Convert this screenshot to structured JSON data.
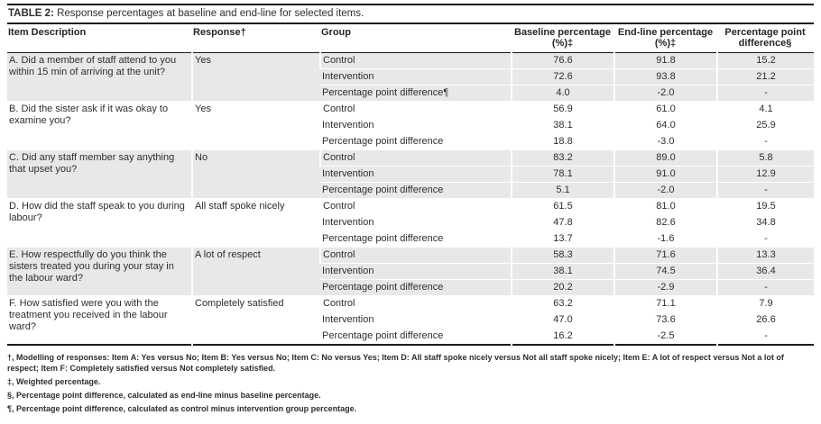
{
  "title": {
    "label": "TABLE 2:",
    "text": " Response percentages at baseline and end-line for selected items."
  },
  "colors": {
    "row_shade": "#e8e8e8",
    "rule": "#1a1a1a"
  },
  "columns": [
    "Item Description",
    "Response†",
    "Group",
    "Baseline percentage\n(%)‡",
    "End-line percentage\n(%)‡",
    "Percentage point\ndifference§"
  ],
  "items": [
    {
      "description": "A. Did a member of staff attend to you within 15 min of arriving at the unit?",
      "response": "Yes",
      "rows": [
        {
          "group": "Control",
          "baseline": "76.6",
          "endline": "91.8",
          "diff": "15.2"
        },
        {
          "group": "Intervention",
          "baseline": "72.6",
          "endline": "93.8",
          "diff": "21.2"
        },
        {
          "group": "Percentage point difference¶",
          "baseline": "4.0",
          "endline": "-2.0",
          "diff": "-"
        }
      ]
    },
    {
      "description": "B. Did the sister ask if it was okay to examine you?",
      "response": "Yes",
      "rows": [
        {
          "group": "Control",
          "baseline": "56.9",
          "endline": "61.0",
          "diff": "4.1"
        },
        {
          "group": "Intervention",
          "baseline": "38.1",
          "endline": "64.0",
          "diff": "25.9"
        },
        {
          "group": "Percentage point difference",
          "baseline": "18.8",
          "endline": "-3.0",
          "diff": "-"
        }
      ]
    },
    {
      "description": "C. Did any staff member say anything that upset you?",
      "response": "No",
      "rows": [
        {
          "group": "Control",
          "baseline": "83.2",
          "endline": "89.0",
          "diff": "5.8"
        },
        {
          "group": "Intervention",
          "baseline": "78.1",
          "endline": "91.0",
          "diff": "12.9"
        },
        {
          "group": "Percentage point difference",
          "baseline": "5.1",
          "endline": "-2.0",
          "diff": "-"
        }
      ]
    },
    {
      "description": "D. How did the staff speak to you during labour?",
      "response": "All staff spoke nicely",
      "rows": [
        {
          "group": "Control",
          "baseline": "61.5",
          "endline": "81.0",
          "diff": "19.5"
        },
        {
          "group": "Intervention",
          "baseline": "47.8",
          "endline": "82.6",
          "diff": "34.8"
        },
        {
          "group": "Percentage point difference",
          "baseline": "13.7",
          "endline": "-1.6",
          "diff": "-"
        }
      ]
    },
    {
      "description": "E. How respectfully do you think the sisters treated you during your stay in the labour ward?",
      "response": "A lot of respect",
      "rows": [
        {
          "group": "Control",
          "baseline": "58.3",
          "endline": "71.6",
          "diff": "13.3"
        },
        {
          "group": "Intervention",
          "baseline": "38.1",
          "endline": "74.5",
          "diff": "36.4"
        },
        {
          "group": "Percentage point difference",
          "baseline": "20.2",
          "endline": "-2.9",
          "diff": "-"
        }
      ]
    },
    {
      "description": "F. How satisfied were you with the treatment you received in the labour ward?",
      "response": "Completely satisfied",
      "rows": [
        {
          "group": "Control",
          "baseline": "63.2",
          "endline": "71.1",
          "diff": "7.9"
        },
        {
          "group": "Intervention",
          "baseline": "47.0",
          "endline": "73.6",
          "diff": "26.6"
        },
        {
          "group": "Percentage point difference",
          "baseline": "16.2",
          "endline": "-2.5",
          "diff": "-"
        }
      ]
    }
  ],
  "footnotes": [
    "†, Modelling of responses: Item A: Yes versus No; Item B: Yes versus No; Item C: No versus Yes; Item D: All staff spoke nicely versus Not all staff spoke nicely; Item E: A lot of respect versus Not a lot of respect; Item F: Completely satisfied versus Not completely satisfied.",
    "‡, Weighted percentage.",
    "§, Percentage point difference, calculated as end-line minus baseline percentage.",
    "¶, Percentage point difference, calculated as control minus intervention group percentage."
  ]
}
